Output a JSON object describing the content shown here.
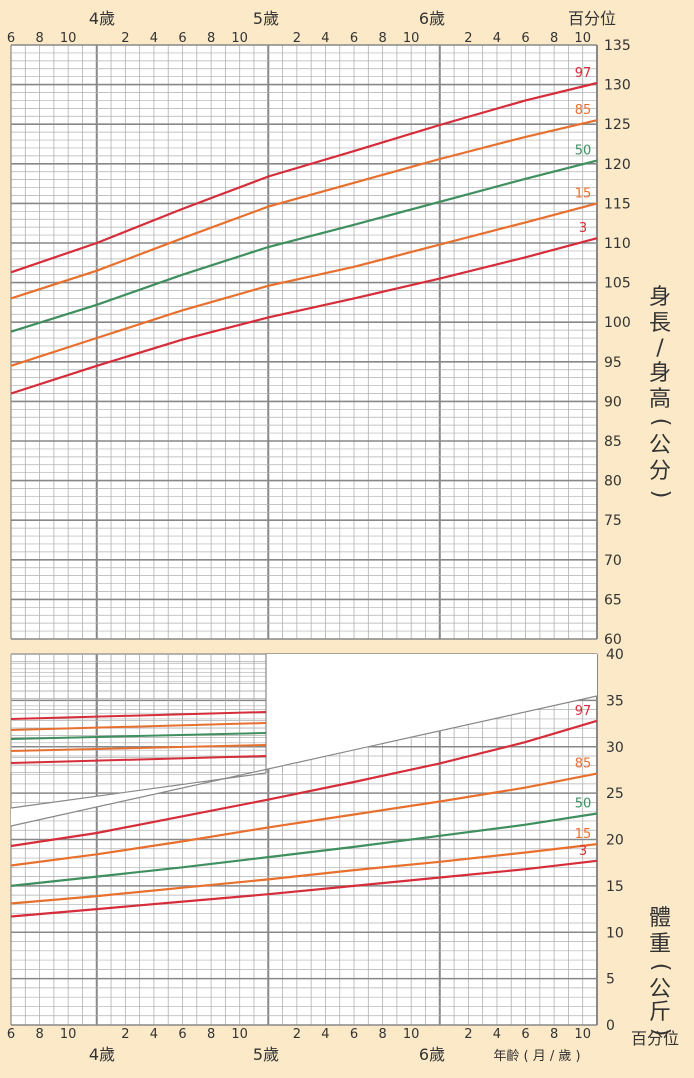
{
  "header": {
    "percentile_label": "百分位"
  },
  "footer": {
    "percentile_label": "百分位",
    "age_unit_label": "年齡 ( 月 / 歲 )"
  },
  "age_axis": {
    "years": [
      "4歲",
      "5歲",
      "6歲"
    ],
    "month_ticks": [
      "6",
      "8",
      "10",
      "2",
      "4",
      "6",
      "8",
      "10",
      "2",
      "4",
      "6",
      "8",
      "10",
      "2",
      "4",
      "6",
      "8",
      "10"
    ]
  },
  "titles": {
    "height": [
      "身",
      "長",
      "/",
      "身",
      "高",
      "(",
      "公",
      "分",
      ")"
    ],
    "weight": [
      "體",
      "重",
      "(",
      "公",
      "斤",
      ")"
    ]
  },
  "colors": {
    "p97": "#d62d3a",
    "p85": "#e8702e",
    "p50": "#3f8f5f",
    "p15": "#e8702e",
    "p3": "#d62d3a",
    "grid_major": "#888888",
    "grid_minor": "#b0b0b0",
    "background": "#fbe9c8"
  },
  "chart_data": [
    {
      "type": "line",
      "title": "身長/身高(公分)",
      "xlabel": "年齡 (月/歲)",
      "ylabel": "身長/身高(公分)",
      "x_unit": "months of age",
      "xlim": [
        42,
        83
      ],
      "ylim": [
        60,
        135
      ],
      "y_ticks": [
        60,
        65,
        70,
        75,
        80,
        85,
        90,
        95,
        100,
        105,
        110,
        115,
        120,
        125,
        130,
        135
      ],
      "grid": true,
      "series": [
        {
          "name": "97",
          "x": [
            42,
            48,
            54,
            60,
            66,
            72,
            78,
            83
          ],
          "values": [
            106.3,
            110.0,
            114.3,
            118.4,
            121.6,
            124.9,
            128.0,
            130.2
          ]
        },
        {
          "name": "85",
          "x": [
            42,
            48,
            54,
            60,
            66,
            72,
            78,
            83
          ],
          "values": [
            103.0,
            106.5,
            110.6,
            114.6,
            117.6,
            120.6,
            123.4,
            125.5
          ]
        },
        {
          "name": "50",
          "x": [
            42,
            48,
            54,
            60,
            66,
            72,
            78,
            83
          ],
          "values": [
            98.8,
            102.2,
            106.0,
            109.5,
            112.3,
            115.2,
            118.1,
            120.4
          ]
        },
        {
          "name": "15",
          "x": [
            42,
            48,
            54,
            60,
            66,
            72,
            78,
            83
          ],
          "values": [
            94.5,
            98.0,
            101.5,
            104.6,
            107.0,
            109.8,
            112.6,
            115.0
          ]
        },
        {
          "name": "3",
          "x": [
            42,
            48,
            54,
            60,
            66,
            72,
            78,
            83
          ],
          "values": [
            91.0,
            94.5,
            97.8,
            100.6,
            103.0,
            105.5,
            108.2,
            110.6
          ]
        }
      ]
    },
    {
      "type": "line",
      "title": "體重(公斤)",
      "xlabel": "年齡 (月/歲)",
      "ylabel": "體重(公斤)",
      "x_unit": "months of age",
      "xlim": [
        42,
        83
      ],
      "ylim": [
        0,
        40
      ],
      "y_ticks": [
        0,
        5,
        10,
        15,
        20,
        25,
        30,
        35,
        40
      ],
      "grid": true,
      "series": [
        {
          "name": "97",
          "x": [
            42,
            48,
            54,
            60,
            66,
            72,
            78,
            83
          ],
          "values": [
            19.3,
            20.7,
            22.5,
            24.3,
            26.2,
            28.2,
            30.5,
            32.8
          ]
        },
        {
          "name": "85",
          "x": [
            42,
            48,
            54,
            60,
            66,
            72,
            78,
            83
          ],
          "values": [
            17.2,
            18.4,
            19.8,
            21.3,
            22.7,
            24.1,
            25.6,
            27.1
          ]
        },
        {
          "name": "50",
          "x": [
            42,
            48,
            54,
            60,
            66,
            72,
            78,
            83
          ],
          "values": [
            15.0,
            16.0,
            17.0,
            18.1,
            19.2,
            20.4,
            21.6,
            22.8
          ]
        },
        {
          "name": "15",
          "x": [
            42,
            48,
            54,
            60,
            66,
            72,
            78,
            83
          ],
          "values": [
            13.1,
            13.9,
            14.8,
            15.7,
            16.7,
            17.6,
            18.6,
            19.5
          ]
        },
        {
          "name": "3",
          "x": [
            42,
            48,
            54,
            60,
            66,
            72,
            78,
            83
          ],
          "values": [
            11.7,
            12.5,
            13.3,
            14.1,
            15.0,
            15.9,
            16.8,
            17.7
          ]
        }
      ]
    }
  ]
}
